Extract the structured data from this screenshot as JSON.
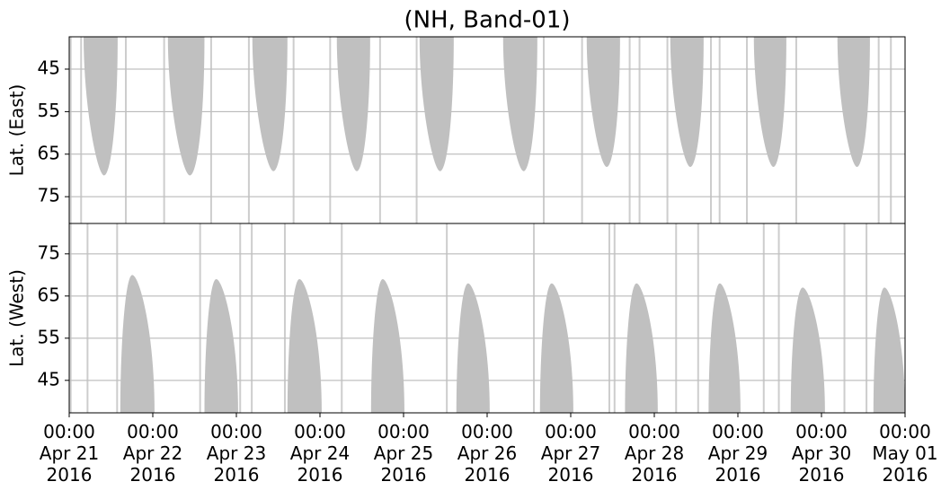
{
  "chart_data": {
    "type": "coverage",
    "title": "(NH, Band-01)",
    "fill_color": "#c0c0c0",
    "grid": true,
    "xlim": [
      "2016-04-21T00:00",
      "2016-05-01T00:00"
    ],
    "xticks": [
      {
        "value": "2016-04-21T00:00",
        "label": "00:00\nApr 21\n2016"
      },
      {
        "value": "2016-04-22T00:00",
        "label": "00:00\nApr 22\n2016"
      },
      {
        "value": "2016-04-23T00:00",
        "label": "00:00\nApr 23\n2016"
      },
      {
        "value": "2016-04-24T00:00",
        "label": "00:00\nApr 24\n2016"
      },
      {
        "value": "2016-04-25T00:00",
        "label": "00:00\nApr 25\n2016"
      },
      {
        "value": "2016-04-26T00:00",
        "label": "00:00\nApr 26\n2016"
      },
      {
        "value": "2016-04-27T00:00",
        "label": "00:00\nApr 27\n2016"
      },
      {
        "value": "2016-04-28T00:00",
        "label": "00:00\nApr 28\n2016"
      },
      {
        "value": "2016-04-29T00:00",
        "label": "00:00\nApr 29\n2016"
      },
      {
        "value": "2016-04-30T00:00",
        "label": "00:00\nApr 30\n2016"
      },
      {
        "value": "2016-05-01T00:00",
        "label": "00:00\nMay 01\n2016"
      }
    ],
    "panels": [
      {
        "ylabel": "Lat. (East)",
        "direction": "down",
        "ylim": [
          81.3,
          37.4
        ],
        "yticks": [
          45,
          55,
          65,
          75
        ],
        "starts": [
          "2016-04-21T04:08",
          "2016-04-22T04:20",
          "2016-04-23T04:35",
          "2016-04-24T04:50",
          "2016-04-25T04:35",
          "2016-04-26T04:35",
          "2016-04-27T04:35",
          "2016-04-28T04:35",
          "2016-04-29T04:35",
          "2016-04-30T04:35"
        ],
        "ends": [
          "2016-04-21T13:55",
          "2016-04-22T14:50",
          "2016-04-23T14:40",
          "2016-04-24T14:25",
          "2016-04-25T14:25",
          "2016-04-26T14:25",
          "2016-04-27T14:10",
          "2016-04-28T14:10",
          "2016-04-29T13:55",
          "2016-04-30T13:55"
        ],
        "values": [
          70,
          70,
          69,
          69,
          69,
          69,
          68,
          68,
          68,
          68
        ],
        "stripes": [
          "2016-04-21T00:10",
          "2016-04-21T03:10",
          "2016-04-21T16:00",
          "2016-04-22T03:00",
          "2016-04-22T16:30",
          "2016-04-23T03:20",
          "2016-04-23T16:10",
          "2016-04-24T02:40",
          "2016-04-24T17:00",
          "2016-04-25T03:30",
          "2016-04-26T16:00",
          "2016-04-27T03:00",
          "2016-04-27T16:40",
          "2016-04-27T19:30",
          "2016-04-28T03:30",
          "2016-04-28T16:00",
          "2016-04-28T18:30",
          "2016-04-29T02:20",
          "2016-04-29T16:30",
          "2016-04-30T16:10",
          "2016-04-30T19:40"
        ]
      },
      {
        "ylabel": "Lat. (West)",
        "direction": "up",
        "ylim": [
          37.3,
          82.2
        ],
        "yticks": [
          45,
          55,
          65,
          75
        ],
        "starts": [
          "2016-04-21T14:40",
          "2016-04-22T14:50",
          "2016-04-23T14:40",
          "2016-04-24T14:40",
          "2016-04-25T15:10",
          "2016-04-26T15:10",
          "2016-04-27T15:35",
          "2016-04-28T15:35",
          "2016-04-29T15:10",
          "2016-04-30T14:55"
        ],
        "ends": [
          "2016-04-22T00:30",
          "2016-04-23T00:30",
          "2016-04-24T00:30",
          "2016-04-25T00:15",
          "2016-04-26T00:45",
          "2016-04-27T00:45",
          "2016-04-28T01:00",
          "2016-04-29T00:45",
          "2016-04-30T01:00",
          "2016-05-01T00:00"
        ],
        "values": [
          70,
          69,
          69,
          69,
          68,
          68,
          68,
          68,
          67,
          67
        ],
        "stripes": [
          "2016-04-21T00:10",
          "2016-04-21T05:00",
          "2016-04-21T13:30",
          "2016-04-22T13:20",
          "2016-04-23T00:50",
          "2016-04-23T04:10",
          "2016-04-23T13:40",
          "2016-04-24T06:00",
          "2016-04-25T12:10",
          "2016-04-26T13:10",
          "2016-04-27T10:50",
          "2016-04-27T12:20",
          "2016-04-28T06:00",
          "2016-04-28T12:20",
          "2016-04-29T07:10",
          "2016-04-29T11:30",
          "2016-04-30T06:20",
          "2016-04-30T12:40"
        ]
      }
    ]
  }
}
